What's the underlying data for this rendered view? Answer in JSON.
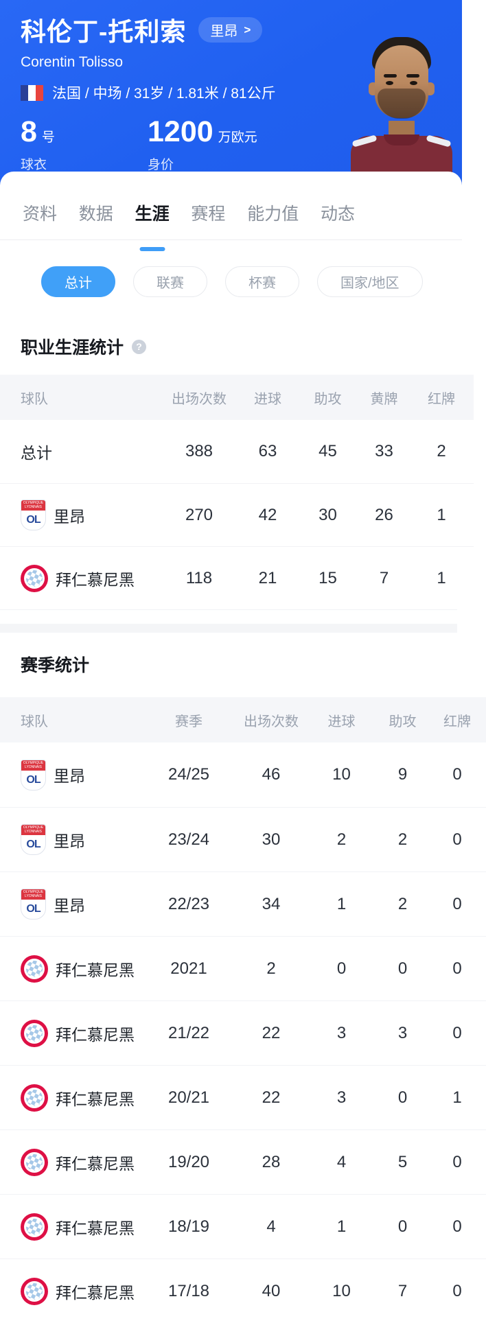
{
  "header": {
    "player_name": "科伦丁-托利索",
    "team_chip": "里昂",
    "team_chip_arrow": ">",
    "english_name": "Corentin Tolisso",
    "info_line": "法国 / 中场 / 31岁 / 1.81米 / 81公斤",
    "jersey": {
      "number": "8",
      "unit": "号",
      "label": "球衣"
    },
    "market_value": {
      "number": "1200",
      "unit": "万欧元",
      "label": "身价"
    }
  },
  "tabs": [
    {
      "label": "资料"
    },
    {
      "label": "数据"
    },
    {
      "label": "生涯"
    },
    {
      "label": "赛程"
    },
    {
      "label": "能力值"
    },
    {
      "label": "动态"
    }
  ],
  "filters": [
    {
      "label": "总计"
    },
    {
      "label": "联赛"
    },
    {
      "label": "杯赛"
    },
    {
      "label": "国家/地区"
    }
  ],
  "career": {
    "title": "职业生涯统计",
    "help_icon": "?",
    "columns": [
      "球队",
      "出场次数",
      "进球",
      "助攻",
      "黄牌",
      "红牌"
    ],
    "rows": [
      {
        "team": "总计",
        "badge": "none",
        "values": [
          "388",
          "63",
          "45",
          "33",
          "2"
        ]
      },
      {
        "team": "里昂",
        "badge": "lyon",
        "values": [
          "270",
          "42",
          "30",
          "26",
          "1"
        ]
      },
      {
        "team": "拜仁慕尼黑",
        "badge": "bayern",
        "values": [
          "118",
          "21",
          "15",
          "7",
          "1"
        ]
      }
    ]
  },
  "season": {
    "title": "赛季统计",
    "columns": [
      "球队",
      "赛季",
      "出场次数",
      "进球",
      "助攻",
      "红牌"
    ],
    "rows": [
      {
        "team": "里昂",
        "badge": "lyon",
        "season": "24/25",
        "values": [
          "46",
          "10",
          "9",
          "0"
        ]
      },
      {
        "team": "里昂",
        "badge": "lyon",
        "season": "23/24",
        "values": [
          "30",
          "2",
          "2",
          "0"
        ]
      },
      {
        "team": "里昂",
        "badge": "lyon",
        "season": "22/23",
        "values": [
          "34",
          "1",
          "2",
          "0"
        ]
      },
      {
        "team": "拜仁慕尼黑",
        "badge": "bayern",
        "season": "2021",
        "values": [
          "2",
          "0",
          "0",
          "0"
        ]
      },
      {
        "team": "拜仁慕尼黑",
        "badge": "bayern",
        "season": "21/22",
        "values": [
          "22",
          "3",
          "3",
          "0"
        ]
      },
      {
        "team": "拜仁慕尼黑",
        "badge": "bayern",
        "season": "20/21",
        "values": [
          "22",
          "3",
          "0",
          "1"
        ]
      },
      {
        "team": "拜仁慕尼黑",
        "badge": "bayern",
        "season": "19/20",
        "values": [
          "28",
          "4",
          "5",
          "0"
        ]
      },
      {
        "team": "拜仁慕尼黑",
        "badge": "bayern",
        "season": "18/19",
        "values": [
          "4",
          "1",
          "0",
          "0"
        ]
      },
      {
        "team": "拜仁慕尼黑",
        "badge": "bayern",
        "season": "17/18",
        "values": [
          "40",
          "10",
          "7",
          "0"
        ]
      }
    ]
  },
  "icons": {
    "flag": "france-flag",
    "lyon_badge": "olympique-lyonnais-crest",
    "bayern_badge": "fc-bayern-roundel",
    "help": "question-mark-circle"
  },
  "colors": {
    "header_blue": "#2060f0",
    "accent_blue": "#3f9df7",
    "active_pill_blue": "#40a0f8",
    "lyon_red": "#dc3540",
    "lyon_navy": "#274a9b",
    "bayern_red": "#de1045",
    "bayern_check_blue": "#a6c8e8",
    "flag_blue": "#2a4097",
    "flag_red": "#e8443e"
  }
}
